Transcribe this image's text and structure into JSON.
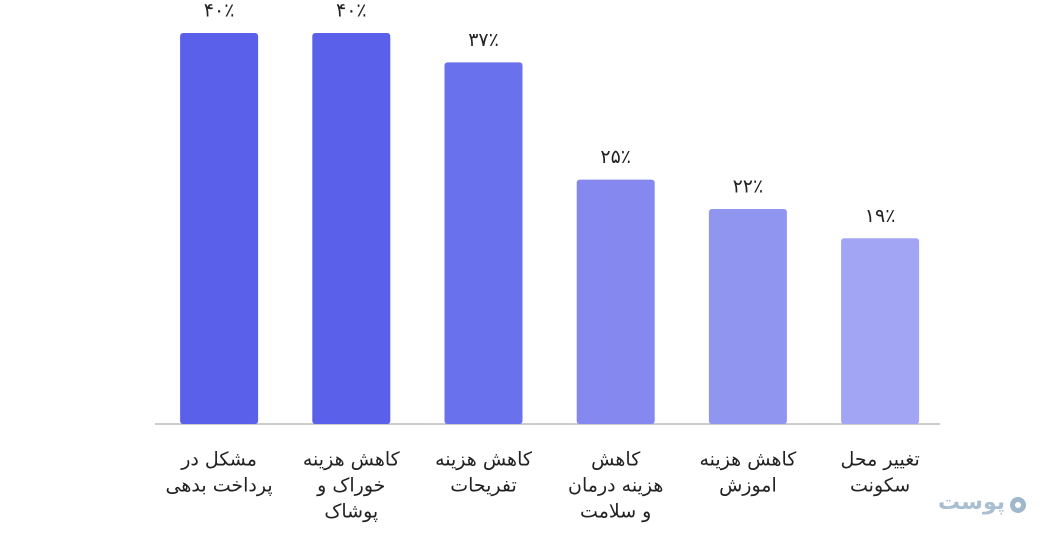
{
  "chart_data": {
    "type": "bar",
    "categories": [
      [
        "مشکل در",
        "پرداخت بدهی"
      ],
      [
        "کاهش هزینه",
        "خوراک و",
        "پوشاک"
      ],
      [
        "کاهش هزینه",
        "تفریحات"
      ],
      [
        "کاهش",
        "هزینه درمان",
        "و سلامت"
      ],
      [
        "کاهش هزینه",
        "اموزش"
      ],
      [
        "تغییر محل",
        "سکونت"
      ]
    ],
    "values": [
      40,
      40,
      37,
      25,
      22,
      19
    ],
    "value_labels": [
      "۴۰٪",
      "۴۰٪",
      "۳۷٪",
      "۲۵٪",
      "۲۲٪",
      "۱۹٪"
    ],
    "colors": [
      "#5a60e9",
      "#5a60e9",
      "#6a71ec",
      "#8488ef",
      "#9095f0",
      "#a2a5f3"
    ]
  },
  "watermark": "پوست"
}
